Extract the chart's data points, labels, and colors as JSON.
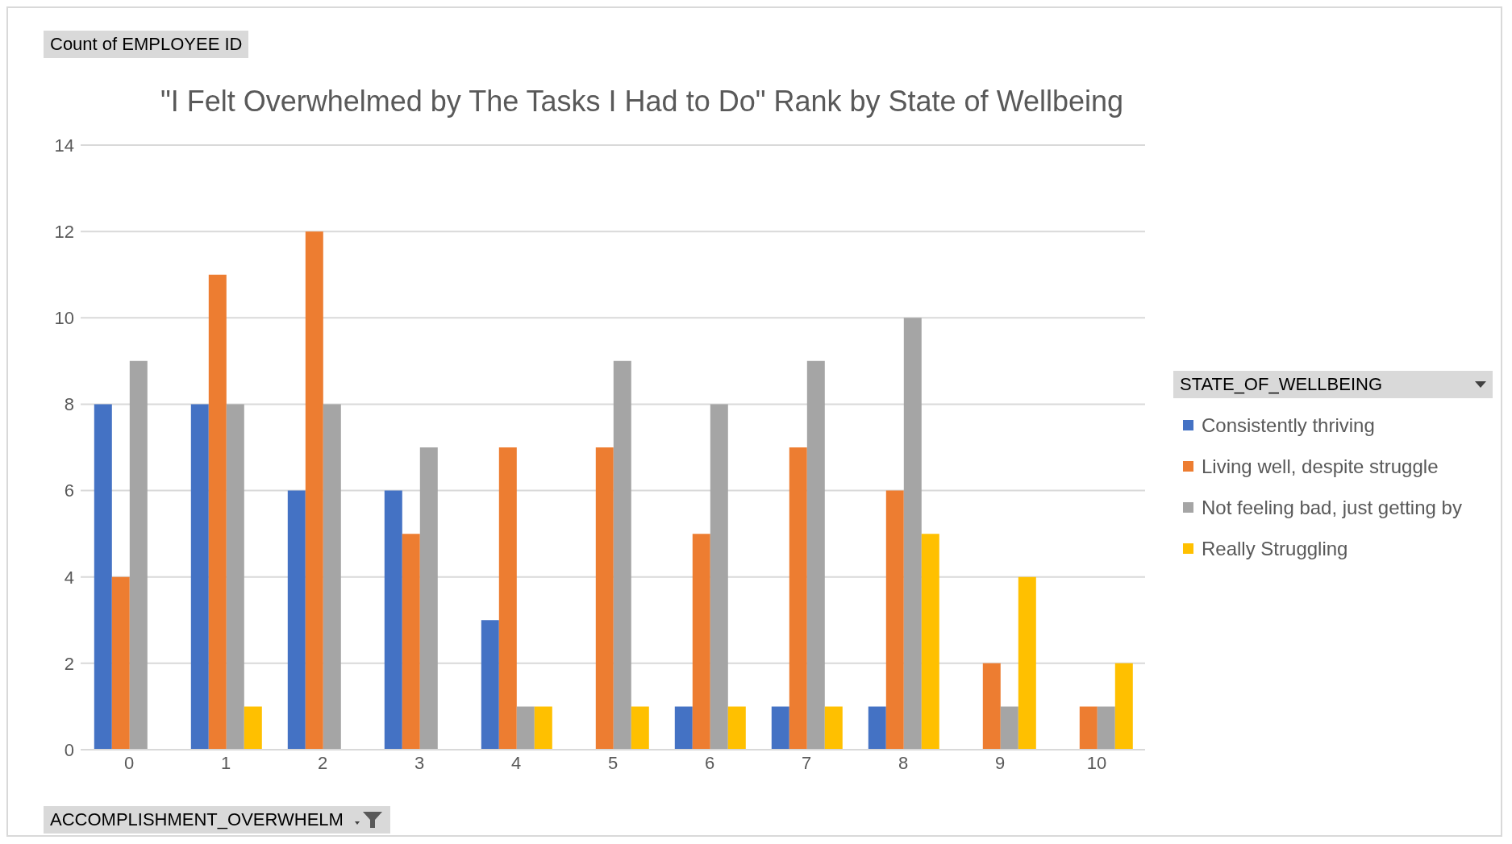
{
  "chart_data": {
    "type": "bar",
    "title": "\"I Felt Overwhelmed by The Tasks I Had to Do\" Rank by State of Wellbeing",
    "ylabel": "Count of EMPLOYEE ID",
    "xlabel": "ACCOMPLISHMENT_OVERWHELM",
    "legend_title": "STATE_OF_WELLBEING",
    "categories": [
      "0",
      "1",
      "2",
      "3",
      "4",
      "5",
      "6",
      "7",
      "8",
      "9",
      "10"
    ],
    "series": [
      {
        "name": "Consistently thriving",
        "color": "#4472c4",
        "values": [
          8,
          8,
          6,
          6,
          3,
          null,
          1,
          1,
          1,
          null,
          null
        ]
      },
      {
        "name": "Living well, despite struggle",
        "color": "#ed7d31",
        "values": [
          4,
          11,
          12,
          5,
          7,
          7,
          5,
          7,
          6,
          2,
          1
        ]
      },
      {
        "name": "Not feeling bad, just getting by",
        "color": "#a5a5a5",
        "values": [
          9,
          8,
          8,
          7,
          1,
          9,
          8,
          9,
          10,
          1,
          1
        ]
      },
      {
        "name": "Really Struggling",
        "color": "#ffc000",
        "values": [
          null,
          1,
          null,
          null,
          1,
          1,
          1,
          1,
          5,
          4,
          2
        ]
      }
    ],
    "ylim": [
      0,
      14
    ],
    "yticks": [
      0,
      2,
      4,
      6,
      8,
      10,
      12,
      14
    ],
    "grid": "y",
    "legend": "right"
  }
}
